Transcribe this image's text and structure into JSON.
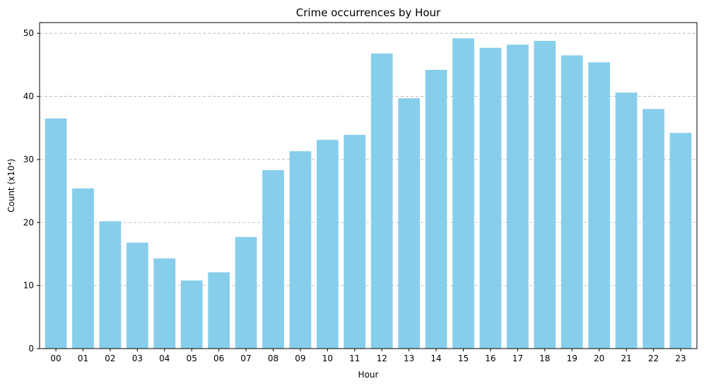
{
  "chart_data": {
    "type": "bar",
    "title": "Crime occurrences by Hour",
    "xlabel": "Hour",
    "ylabel": "Count (x10⁴)",
    "categories": [
      "00",
      "01",
      "02",
      "03",
      "04",
      "05",
      "06",
      "07",
      "08",
      "09",
      "10",
      "11",
      "12",
      "13",
      "14",
      "15",
      "16",
      "17",
      "18",
      "19",
      "20",
      "21",
      "22",
      "23"
    ],
    "values": [
      36.5,
      25.4,
      20.2,
      16.8,
      14.3,
      10.8,
      12.1,
      17.7,
      28.3,
      31.3,
      33.1,
      33.9,
      46.8,
      39.7,
      44.2,
      49.2,
      47.7,
      48.2,
      48.8,
      46.5,
      45.4,
      40.6,
      38.0,
      34.2
    ],
    "ylim": [
      0,
      51.7
    ],
    "yticks": [
      0,
      10,
      20,
      30,
      40,
      50
    ],
    "bar_color": "#87ceeb",
    "grid": "y-dashed"
  }
}
